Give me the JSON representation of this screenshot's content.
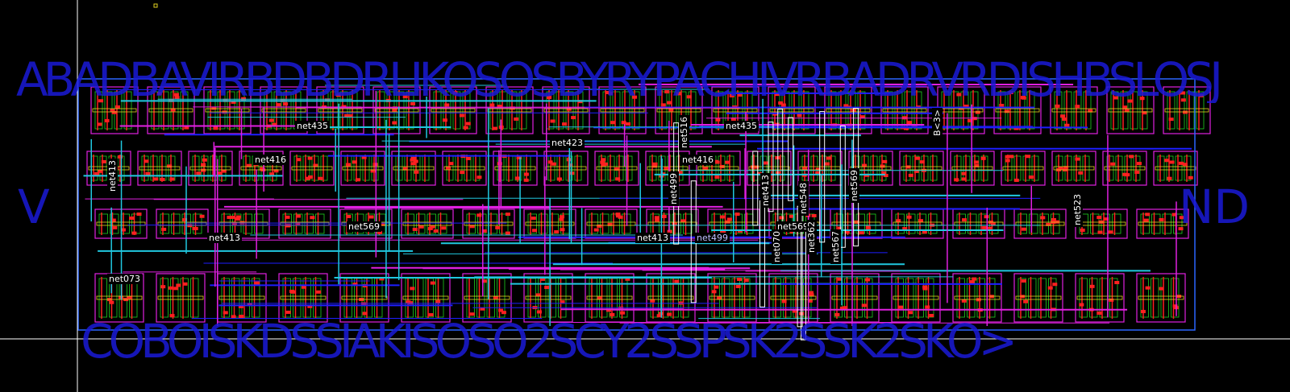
{
  "colors": {
    "background": "#000000",
    "boundary": "#2a66ff",
    "metal1": "#1e1eff",
    "metal2": "#e020e0",
    "metal3": "#20c8e0",
    "poly": "#ff2020",
    "diffusion": "#20d020",
    "implant": "#e0d020",
    "label_bg": "#000000",
    "label_text": "#ffffff",
    "pin_text": "#1a1ad8",
    "crosshair": "#ffffff"
  },
  "pins": {
    "top": "ABADBAVIRBDBDRLIKOSOSBYRYPACHIVRBADRVRDISHBSLOSJ",
    "left_mid": "V",
    "right_mid": "ND",
    "bottom": "COBOISKDSSIAKISOSO2SCY2SSPSK2SSK2SKO>"
  },
  "nets": [
    {
      "id": "n1",
      "text": "net435"
    },
    {
      "id": "n2",
      "text": "net435"
    },
    {
      "id": "n3",
      "text": "net423"
    },
    {
      "id": "n4",
      "text": "net416"
    },
    {
      "id": "n5",
      "text": "net416"
    },
    {
      "id": "n6",
      "text": "net413"
    },
    {
      "id": "n7",
      "text": "net413"
    },
    {
      "id": "n8",
      "text": "net413"
    },
    {
      "id": "n9",
      "text": "net413"
    },
    {
      "id": "n10",
      "text": "net569"
    },
    {
      "id": "n11",
      "text": "net569"
    },
    {
      "id": "n12",
      "text": "net569"
    },
    {
      "id": "n13",
      "text": "net073"
    },
    {
      "id": "n14",
      "text": "net499"
    },
    {
      "id": "n15",
      "text": "net499"
    },
    {
      "id": "n16",
      "text": "net516"
    },
    {
      "id": "n17",
      "text": "net548"
    },
    {
      "id": "n18",
      "text": "net070"
    },
    {
      "id": "n19",
      "text": "net362"
    },
    {
      "id": "n20",
      "text": "net567"
    },
    {
      "id": "n21",
      "text": "net523"
    },
    {
      "id": "n22",
      "text": "B<3>"
    }
  ]
}
